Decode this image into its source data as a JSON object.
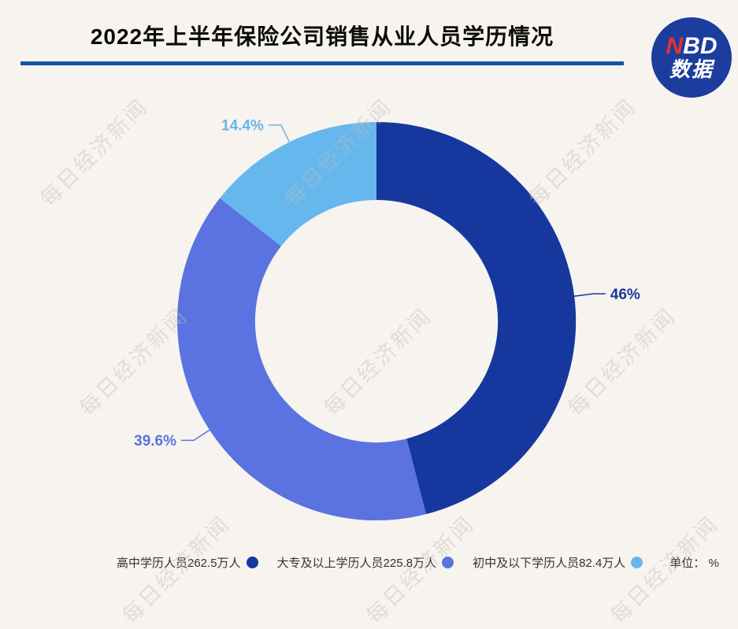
{
  "header": {
    "title": "2022年上半年保险公司销售从业人员学历情况"
  },
  "logo": {
    "red_letter": "N",
    "white_letters": "BD",
    "subtitle": "数据"
  },
  "watermark": {
    "text": "每日经济新闻"
  },
  "chart_data": {
    "type": "pie",
    "donut": true,
    "title": "2022年上半年保险公司销售从业人员学历情况",
    "start_angle": "top",
    "direction": "clockwise",
    "inner_radius_ratio": 0.61,
    "unit_label": "单位： %",
    "slices": [
      {
        "name": "高中学历人员",
        "people": "262.5万人",
        "percent": 46,
        "percent_label": "46%",
        "legend_label": "高中学历人员262.5万人",
        "color": "#16389E"
      },
      {
        "name": "大专及以上学历人员",
        "people": "225.8万人",
        "percent": 39.6,
        "percent_label": "39.6%",
        "legend_label": "大专及以上学历人员225.8万人",
        "color": "#5A73E0"
      },
      {
        "name": "初中及以下学历人员",
        "people": "82.4万人",
        "percent": 14.4,
        "percent_label": "14.4%",
        "legend_label": "初中及以下学历人员82.4万人",
        "color": "#66B7EE"
      }
    ]
  },
  "colors": {
    "background": "#F7F3EE",
    "title_rule": "#1254A8",
    "title_text": "#0B0B0B",
    "logo_background": "#1C3D9E",
    "logo_red": "#E8302A",
    "legend_text": "#333333"
  }
}
